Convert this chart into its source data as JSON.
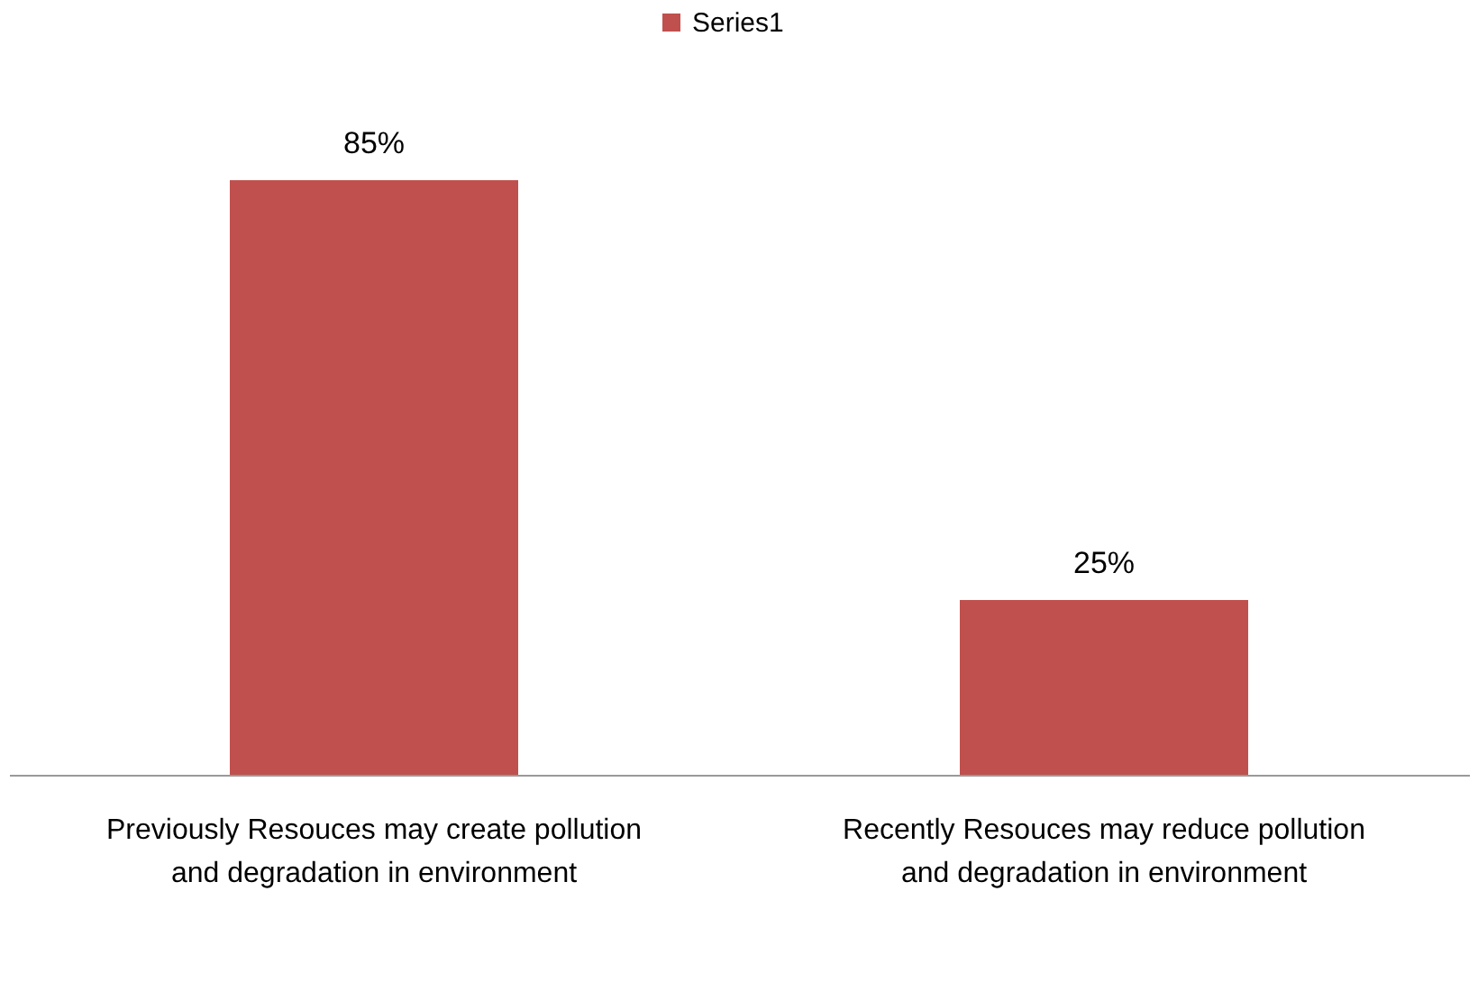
{
  "chart_data": {
    "type": "bar",
    "categories": [
      "Previously Resouces may create pollution and degradation in environment",
      "Recently Resouces may reduce pollution and degradation in environment"
    ],
    "series": [
      {
        "name": "Series1",
        "color": "#c0504d",
        "values": [
          85,
          25
        ],
        "value_labels": [
          "85%",
          "25%"
        ]
      }
    ],
    "legend": "top"
  }
}
